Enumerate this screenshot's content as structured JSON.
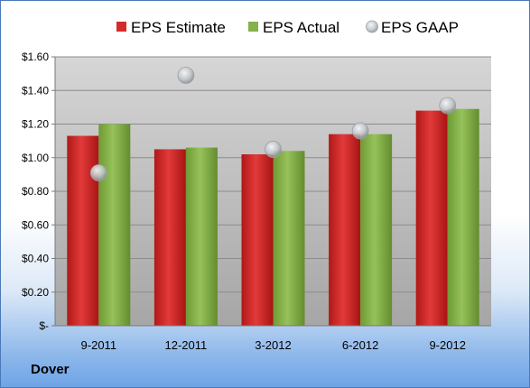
{
  "company": "Dover",
  "colors": {
    "estimate": "#d42a2a",
    "actual": "#86b04a",
    "gaap": "#c4c8cc",
    "plot_top": "#d6d6d6",
    "plot_bottom": "#a6a6a6"
  },
  "chart_data": {
    "type": "bar",
    "categories": [
      "9-2011",
      "12-2011",
      "3-2012",
      "6-2012",
      "9-2012"
    ],
    "series": [
      {
        "name": "EPS Estimate",
        "kind": "bar",
        "values": [
          1.13,
          1.05,
          1.02,
          1.14,
          1.28
        ]
      },
      {
        "name": "EPS Actual",
        "kind": "bar",
        "values": [
          1.2,
          1.06,
          1.04,
          1.14,
          1.29
        ]
      },
      {
        "name": "EPS GAAP",
        "kind": "marker",
        "values": [
          0.91,
          1.49,
          1.05,
          1.16,
          1.31
        ]
      }
    ],
    "ylim": [
      0,
      1.6
    ],
    "yticks": [
      0,
      0.2,
      0.4,
      0.6,
      0.8,
      1.0,
      1.2,
      1.4,
      1.6
    ],
    "ytick_labels": [
      "$-",
      "$0.20",
      "$0.40",
      "$0.60",
      "$0.80",
      "$1.00",
      "$1.20",
      "$1.40",
      "$1.60"
    ],
    "legend_position": "top",
    "grid": true
  }
}
